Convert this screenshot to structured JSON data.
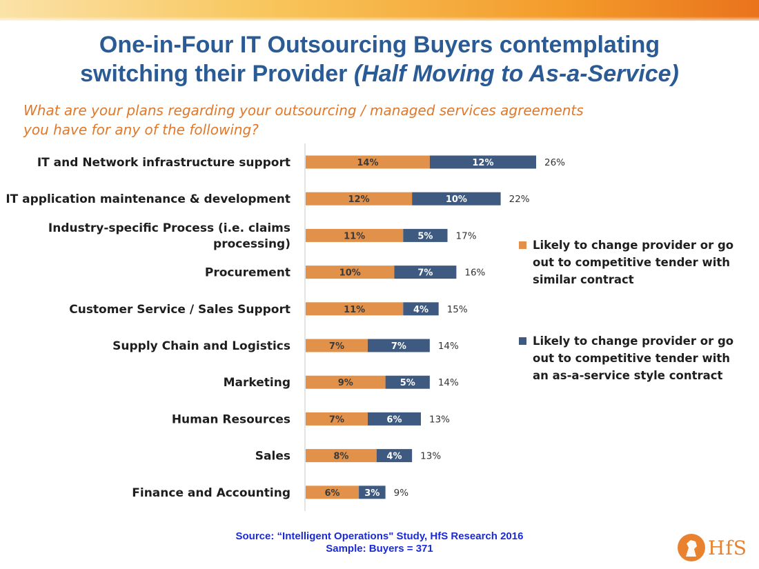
{
  "header": {
    "title_line1": "One-in-Four IT Outsourcing Buyers contemplating",
    "title_line2_plain": "switching their Provider ",
    "title_line2_italic": "(Half Moving to As-a-Service)",
    "question_line1": "What are your plans regarding your outsourcing / managed services agreements",
    "question_line2": "you have for any of the following?"
  },
  "chart_data": {
    "type": "bar",
    "orientation": "horizontal",
    "stacked": true,
    "categories": [
      "IT and Network infrastructure support",
      "IT application maintenance & development",
      "Industry-specific Process (i.e. claims processing)",
      "Procurement",
      "Customer Service / Sales Support",
      "Supply Chain and Logistics",
      "Marketing",
      "Human Resources",
      "Sales",
      "Finance and Accounting"
    ],
    "category_label_lines": [
      [
        "IT and Network infrastructure support"
      ],
      [
        "IT application maintenance & development"
      ],
      [
        "Industry-specific Process (i.e. claims",
        "processing)"
      ],
      [
        "Procurement"
      ],
      [
        "Customer Service / Sales Support"
      ],
      [
        "Supply Chain and Logistics"
      ],
      [
        "Marketing"
      ],
      [
        "Human Resources"
      ],
      [
        "Sales"
      ],
      [
        "Finance and Accounting"
      ]
    ],
    "series": [
      {
        "name": "Likely to change provider or go out to competitive tender with similar contract",
        "color": "#e2914a",
        "values": [
          14,
          12,
          11,
          10,
          11,
          7,
          9,
          7,
          8,
          6
        ]
      },
      {
        "name": "Likely to change provider or go out to competitive tender with an as-a-service style contract",
        "color": "#3e5a80",
        "values": [
          12,
          10,
          5,
          7,
          4,
          7,
          5,
          6,
          4,
          3
        ]
      }
    ],
    "totals": [
      26,
      22,
      17,
      16,
      15,
      14,
      14,
      13,
      13,
      9
    ],
    "value_suffix": "%"
  },
  "legend": {
    "items": [
      {
        "line1": "Likely to change provider or go",
        "line2": "out to competitive tender with",
        "line3": "similar contract",
        "color": "#e2914a"
      },
      {
        "line1": "Likely to change provider or go",
        "line2": "out to competitive tender with",
        "line3": "an as-a-service style contract",
        "color": "#3e5a80"
      }
    ]
  },
  "footer": {
    "source": "Source: “Intelligent Operations\" Study, HfS Research 2016",
    "sample": "Sample: Buyers = 371",
    "logo_text": "HfS"
  }
}
